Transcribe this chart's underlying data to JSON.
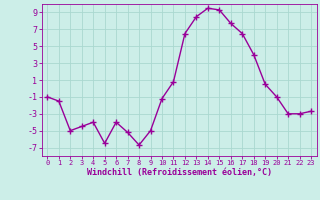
{
  "x": [
    0,
    1,
    2,
    3,
    4,
    5,
    6,
    7,
    8,
    9,
    10,
    11,
    12,
    13,
    14,
    15,
    16,
    17,
    18,
    19,
    20,
    21,
    22,
    23
  ],
  "y": [
    -1,
    -1.5,
    -5,
    -4.5,
    -4,
    -6.5,
    -4,
    -5.2,
    -6.7,
    -5,
    -1.2,
    0.8,
    6.5,
    8.5,
    9.5,
    9.3,
    7.7,
    6.5,
    4.0,
    0.5,
    -1.0,
    -3.0,
    -3.0,
    -2.7
  ],
  "line_color": "#990099",
  "marker": "+",
  "markersize": 4,
  "markeredgewidth": 1.0,
  "linewidth": 1.0,
  "bg_color": "#cceee8",
  "grid_color": "#aad8d0",
  "xlabel": "Windchill (Refroidissement éolien,°C)",
  "xlabel_color": "#990099",
  "tick_color": "#990099",
  "spine_color": "#990099",
  "ylim": [
    -8,
    10
  ],
  "yticks": [
    -7,
    -5,
    -3,
    -1,
    1,
    3,
    5,
    7,
    9
  ],
  "xticks": [
    0,
    1,
    2,
    3,
    4,
    5,
    6,
    7,
    8,
    9,
    10,
    11,
    12,
    13,
    14,
    15,
    16,
    17,
    18,
    19,
    20,
    21,
    22,
    23
  ],
  "xlim": [
    -0.5,
    23.5
  ]
}
